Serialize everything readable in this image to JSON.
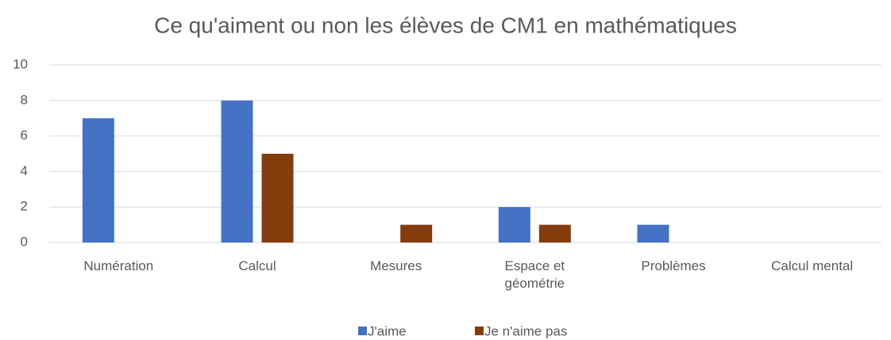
{
  "chart_data": {
    "type": "bar",
    "title": "Ce qu'aiment ou non les élèves de CM1 en mathématiques",
    "categories": [
      "Numération",
      "Calcul",
      "Mesures",
      "Espace et géométrie",
      "Problèmes",
      "Calcul mental"
    ],
    "series": [
      {
        "name": "J'aime",
        "color": "#4472c4",
        "values": [
          7,
          8,
          0,
          2,
          1,
          0
        ]
      },
      {
        "name": "Je n'aime pas",
        "color": "#843c0c",
        "values": [
          0,
          5,
          1,
          1,
          0,
          0
        ]
      }
    ],
    "ylim": [
      0,
      10
    ],
    "yticks": [
      0,
      2,
      4,
      6,
      8,
      10
    ],
    "grid": true,
    "legend": "bottom"
  }
}
